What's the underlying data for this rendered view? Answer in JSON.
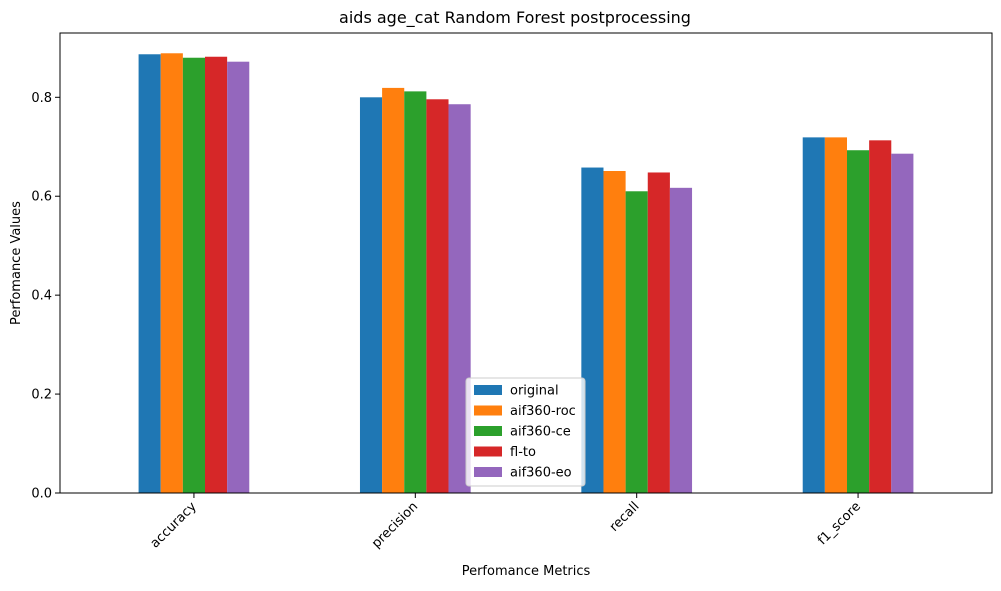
{
  "chart_data": {
    "type": "bar",
    "title": "aids age_cat Random Forest postprocessing",
    "xlabel": "Perfomance Metrics",
    "ylabel": "Perfomance Values",
    "categories": [
      "accuracy",
      "precision",
      "recall",
      "f1_score"
    ],
    "ylim": [
      0,
      0.93
    ],
    "yticks": [
      "0.0",
      "0.2",
      "0.4",
      "0.6",
      "0.8"
    ],
    "grid": false,
    "legend_position": "bottom-center",
    "series": [
      {
        "name": "original",
        "color": "#1f77b4",
        "values": [
          0.887,
          0.8,
          0.658,
          0.719
        ]
      },
      {
        "name": "aif360-roc",
        "color": "#ff7f0e",
        "values": [
          0.889,
          0.819,
          0.651,
          0.719
        ]
      },
      {
        "name": "aif360-ce",
        "color": "#2ca02c",
        "values": [
          0.88,
          0.812,
          0.61,
          0.693
        ]
      },
      {
        "name": "fl-to",
        "color": "#d62728",
        "values": [
          0.882,
          0.796,
          0.648,
          0.713
        ]
      },
      {
        "name": "aif360-eo",
        "color": "#9467bd",
        "values": [
          0.872,
          0.786,
          0.617,
          0.686
        ]
      }
    ]
  }
}
